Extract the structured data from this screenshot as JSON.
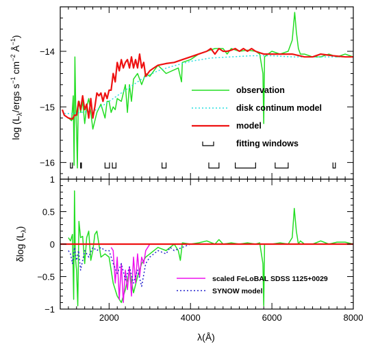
{
  "chart_data": [
    {
      "type": "line",
      "panel": "top",
      "ylabel": "log (L_λ/ergs s⁻¹ cm⁻² Å⁻¹)",
      "xlim": [
        800,
        8000
      ],
      "ylim": [
        -16.3,
        -13.2
      ],
      "yticks": [
        -16,
        -15,
        -14
      ],
      "grid": false,
      "legend_position": "right-middle",
      "series": [
        {
          "name": "observation",
          "color": "#22dd22",
          "x": [
            1000,
            1080,
            1120,
            1140,
            1160,
            1180,
            1200,
            1220,
            1240,
            1270,
            1300,
            1350,
            1400,
            1450,
            1500,
            1550,
            1600,
            1700,
            1800,
            1900,
            1950,
            2000,
            2050,
            2100,
            2150,
            2200,
            2300,
            2400,
            2450,
            2500,
            2550,
            2600,
            2700,
            2800,
            2900,
            3000,
            3200,
            3400,
            3700,
            3780,
            3800,
            4000,
            4200,
            4400,
            4600,
            4800,
            4900,
            5000,
            5200,
            5400,
            5600,
            5700,
            5780,
            5800,
            5820,
            5900,
            6000,
            6200,
            6400,
            6500,
            6560,
            6600,
            6650,
            6700,
            6800,
            7000,
            7200,
            7400,
            7600,
            7800,
            8000
          ],
          "y": [
            -15.2,
            -15.25,
            -14.8,
            -16.05,
            -14.1,
            -15.0,
            -15.4,
            -16.1,
            -15.0,
            -14.9,
            -15.1,
            -14.9,
            -15.3,
            -15.0,
            -14.85,
            -15.1,
            -15.4,
            -15.1,
            -14.95,
            -15.2,
            -14.9,
            -14.9,
            -15.1,
            -15.0,
            -15.05,
            -14.85,
            -14.9,
            -14.6,
            -15.1,
            -14.6,
            -14.9,
            -14.5,
            -14.4,
            -14.6,
            -14.4,
            -14.45,
            -14.25,
            -14.4,
            -14.3,
            -14.55,
            -14.2,
            -14.15,
            -14.05,
            -14.0,
            -13.95,
            -13.95,
            -14.05,
            -13.95,
            -14.0,
            -13.98,
            -14.0,
            -14.05,
            -14.4,
            -15.3,
            -14.1,
            -14.05,
            -14.0,
            -14.05,
            -14.0,
            -13.8,
            -13.3,
            -13.65,
            -13.95,
            -14.05,
            -14.05,
            -14.1,
            -14.1,
            -14.05,
            -14.1,
            -14.05,
            -14.1
          ]
        },
        {
          "name": "disk continum model",
          "color": "#22dddd",
          "dash": true,
          "x": [
            900,
            1100,
            1300,
            1500,
            1700,
            1800,
            1900,
            2000,
            2200,
            2400,
            2600,
            2800,
            3000,
            3200,
            3500,
            4000,
            4500,
            5000,
            5500,
            6000,
            6500,
            7000,
            7500,
            8000
          ],
          "y": [
            -15.12,
            -15.12,
            -15.1,
            -15.08,
            -15.05,
            -15.0,
            -14.95,
            -14.9,
            -14.8,
            -14.7,
            -14.6,
            -14.5,
            -14.42,
            -14.35,
            -14.28,
            -14.18,
            -14.12,
            -14.1,
            -14.08,
            -14.08,
            -14.1,
            -14.1,
            -14.1,
            -14.1
          ]
        },
        {
          "name": "model",
          "color": "#ee1111",
          "x": [
            850,
            900,
            1000,
            1100,
            1150,
            1200,
            1250,
            1300,
            1350,
            1400,
            1450,
            1500,
            1550,
            1600,
            1650,
            1700,
            1750,
            1800,
            1850,
            1900,
            1950,
            2000,
            2050,
            2100,
            2150,
            2200,
            2250,
            2300,
            2350,
            2400,
            2450,
            2500,
            2550,
            2600,
            2650,
            2700,
            2750,
            2800,
            2850,
            2900,
            3000,
            3100,
            3200,
            3400,
            3600,
            3800,
            4000,
            4200,
            4400,
            4500,
            4600,
            4700,
            4800,
            4900,
            5000,
            5100,
            5200,
            5300,
            5400,
            5500,
            5600,
            5800,
            6000,
            6200,
            6500,
            6800,
            7000,
            7200,
            7500,
            7800,
            8000
          ],
          "y": [
            -15.05,
            -15.15,
            -15.2,
            -15.22,
            -15.15,
            -15.15,
            -14.9,
            -15.05,
            -14.8,
            -15.05,
            -14.95,
            -15.2,
            -14.85,
            -15.2,
            -15.0,
            -14.75,
            -14.8,
            -14.75,
            -14.9,
            -14.75,
            -14.85,
            -14.7,
            -14.7,
            -14.4,
            -14.55,
            -14.2,
            -14.35,
            -14.15,
            -14.3,
            -14.2,
            -14.15,
            -14.3,
            -14.1,
            -14.3,
            -14.15,
            -14.3,
            -14.05,
            -14.3,
            -14.2,
            -14.45,
            -14.35,
            -14.3,
            -14.25,
            -14.22,
            -14.2,
            -14.15,
            -14.1,
            -14.05,
            -14.0,
            -13.95,
            -14.05,
            -13.95,
            -14.0,
            -14.0,
            -13.98,
            -13.95,
            -14.0,
            -13.95,
            -14.0,
            -13.95,
            -14.0,
            -14.05,
            -14.05,
            -14.05,
            -14.05,
            -14.1,
            -14.1,
            -14.05,
            -14.08,
            -14.1,
            -14.1
          ]
        }
      ],
      "fitting_windows_x": [
        [
          1050,
          1100
        ],
        [
          1300,
          1320
        ],
        [
          1900,
          2010
        ],
        [
          2080,
          2170
        ],
        [
          3300,
          3400
        ],
        [
          4450,
          4700
        ],
        [
          5100,
          5600
        ],
        [
          6080,
          6400
        ],
        [
          7500,
          7560
        ]
      ],
      "legend": [
        {
          "label": "observation",
          "color": "#22dd22",
          "style": "solid"
        },
        {
          "label": "disk continum model",
          "color": "#22dddd",
          "style": "dotted"
        },
        {
          "label": "model",
          "color": "#ee1111",
          "style": "solid"
        },
        {
          "label": "fitting windows",
          "color": "#000000",
          "style": "bracket"
        }
      ]
    },
    {
      "type": "line",
      "panel": "bottom",
      "xlabel": "λ(Å)",
      "ylabel": "δlog (L_λ)",
      "xlim": [
        800,
        8000
      ],
      "ylim": [
        -1,
        1
      ],
      "xticks": [
        2000,
        4000,
        6000,
        8000
      ],
      "yticks": [
        -1,
        -0.5,
        0,
        0.5,
        1
      ],
      "ytick_labels": [
        "−1",
        "−0.5",
        "0",
        "0.5",
        "1"
      ],
      "series": [
        {
          "name": "residual",
          "color": "#22dd22",
          "x": [
            1000,
            1050,
            1100,
            1130,
            1150,
            1170,
            1200,
            1230,
            1260,
            1300,
            1350,
            1400,
            1450,
            1500,
            1550,
            1600,
            1650,
            1700,
            1800,
            1900,
            2000,
            2100,
            2200,
            2300,
            2400,
            2500,
            2600,
            2700,
            2800,
            2900,
            3000,
            3200,
            3400,
            3600,
            3700,
            3750,
            3800,
            4000,
            4200,
            4400,
            4600,
            4700,
            4800,
            4900,
            5000,
            5200,
            5400,
            5600,
            5700,
            5780,
            5800,
            5820,
            5900,
            6000,
            6200,
            6400,
            6500,
            6550,
            6600,
            6650,
            6700,
            6800,
            7000,
            7200,
            7400,
            7600,
            7800,
            8000
          ],
          "y": [
            0.1,
            0.05,
            0.15,
            -0.85,
            0.82,
            -0.2,
            -0.4,
            -0.95,
            0.35,
            0.1,
            0.12,
            -0.3,
            0.1,
            0.2,
            -0.25,
            -0.1,
            0.15,
            0.2,
            -0.2,
            -0.15,
            -0.2,
            -0.6,
            -0.8,
            -0.9,
            -0.7,
            -0.4,
            -0.75,
            -0.5,
            -0.3,
            -0.2,
            -0.15,
            -0.05,
            -0.1,
            0.0,
            -0.1,
            -0.25,
            0.02,
            0.0,
            0.02,
            0.05,
            0.0,
            0.07,
            0.0,
            0.01,
            0.02,
            0.0,
            0.02,
            0.0,
            0.02,
            -0.3,
            -0.95,
            0.0,
            0.0,
            0.0,
            0.02,
            0.0,
            0.1,
            0.55,
            0.2,
            0.0,
            0.05,
            0.0,
            0.0,
            0.05,
            0.0,
            0.03,
            0.03,
            0.0
          ]
        },
        {
          "name": "scaled FeLoBAL SDSS 1125+0029",
          "color": "#ee11ee",
          "x": [
            2050,
            2100,
            2150,
            2200,
            2250,
            2300,
            2350,
            2400,
            2450,
            2500,
            2550,
            2600,
            2650,
            2700,
            2750,
            2800,
            2850,
            2900,
            2950,
            3000
          ],
          "y": [
            -0.05,
            -0.1,
            -0.6,
            -0.2,
            -0.85,
            -0.3,
            -0.9,
            -0.4,
            -0.7,
            -0.35,
            -0.8,
            -0.2,
            -0.6,
            -0.15,
            -0.5,
            -0.2,
            -0.3,
            -0.1,
            -0.05,
            0.0
          ]
        },
        {
          "name": "SYNOW model",
          "color": "#2222cc",
          "dash": true,
          "x": [
            1000,
            1050,
            1100,
            1150,
            1200,
            1250,
            1300,
            1400,
            1500,
            1600,
            1700,
            1800,
            1900,
            2000,
            2100,
            2200,
            2300,
            2400,
            2500,
            2600,
            2700,
            2800,
            2900,
            3000,
            3200,
            3400,
            3500,
            3600,
            3800,
            4000
          ],
          "y": [
            -0.1,
            -0.15,
            -0.3,
            -0.05,
            -0.25,
            -0.1,
            -0.4,
            -0.1,
            -0.2,
            -0.05,
            -0.1,
            -0.05,
            -0.1,
            -0.1,
            -0.3,
            -0.45,
            -0.3,
            -0.55,
            -0.35,
            -0.6,
            -0.4,
            -0.65,
            -0.3,
            -0.2,
            -0.1,
            -0.15,
            -0.05,
            -0.1,
            -0.05,
            0.0
          ]
        },
        {
          "name": "zero line",
          "color": "#ee1111",
          "x": [
            800,
            8000
          ],
          "y": [
            0,
            0
          ]
        }
      ],
      "legend": [
        {
          "label": "scaled FeLoBAL SDSS 1125+0029",
          "color": "#ee11ee",
          "style": "solid"
        },
        {
          "label": "SYNOW model",
          "color": "#2222cc",
          "style": "dotted"
        }
      ]
    }
  ],
  "axis_text": {
    "top_ylabel_main": "log (L",
    "top_ylabel_sub": "λ",
    "top_ylabel_rest": "/ergs s",
    "top_ylabel_exp1": "−1",
    "top_ylabel_cm": " cm",
    "top_ylabel_exp2": "−2",
    "top_ylabel_A": " Å",
    "top_ylabel_exp3": "−1",
    "top_ylabel_close": ")",
    "bottom_ylabel_main": "δlog (L",
    "bottom_ylabel_sub": "λ",
    "bottom_ylabel_close": ")",
    "xlabel": "λ(Å)"
  }
}
